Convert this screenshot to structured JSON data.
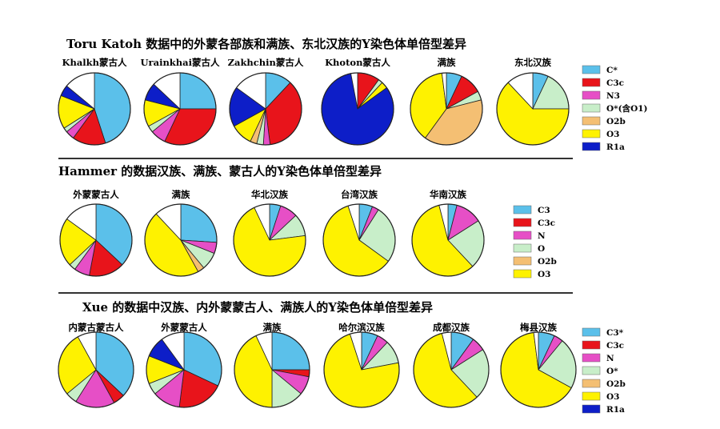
{
  "colors": {
    "C": "#5bc0ea",
    "C3c": "#e8141b",
    "N": "#e64fc6",
    "O": "#c8eec9",
    "O2b": "#f4bf73",
    "O3": "#fef200",
    "R1a": "#0d1ec8",
    "other": "#ffffff"
  },
  "chart_data": [
    {
      "type": "pie",
      "title": "Toru Katoh 数据中的外蒙各部族和满族、东北汉族的Y染色体单倍型差异",
      "legend": [
        {
          "key": "C",
          "label": "C*"
        },
        {
          "key": "C3c",
          "label": "C3c"
        },
        {
          "key": "N",
          "label": "N3"
        },
        {
          "key": "O",
          "label": "O*(含O1)"
        },
        {
          "key": "O2b",
          "label": "O2b"
        },
        {
          "key": "O3",
          "label": "O3"
        },
        {
          "key": "R1a",
          "label": "R1a"
        }
      ],
      "series": [
        {
          "name": "Khalkh蒙古人",
          "slices": [
            {
              "key": "C",
              "value": 45
            },
            {
              "key": "C3c",
              "value": 15
            },
            {
              "key": "N",
              "value": 4
            },
            {
              "key": "O",
              "value": 2
            },
            {
              "key": "O3",
              "value": 15
            },
            {
              "key": "R1a",
              "value": 5
            },
            {
              "key": "other",
              "value": 14
            }
          ]
        },
        {
          "name": "Urainkhai蒙古人",
          "slices": [
            {
              "key": "C",
              "value": 25
            },
            {
              "key": "C3c",
              "value": 32
            },
            {
              "key": "N",
              "value": 7
            },
            {
              "key": "O",
              "value": 3
            },
            {
              "key": "O3",
              "value": 12
            },
            {
              "key": "R1a",
              "value": 8
            },
            {
              "key": "other",
              "value": 13
            }
          ]
        },
        {
          "name": "Zakhchin蒙古人",
          "slices": [
            {
              "key": "C",
              "value": 12
            },
            {
              "key": "C3c",
              "value": 36
            },
            {
              "key": "N",
              "value": 3
            },
            {
              "key": "O",
              "value": 3
            },
            {
              "key": "O2b",
              "value": 3
            },
            {
              "key": "O3",
              "value": 10
            },
            {
              "key": "R1a",
              "value": 18
            },
            {
              "key": "other",
              "value": 15
            }
          ]
        },
        {
          "name": "Khoton蒙古人",
          "slices": [
            {
              "key": "C3c",
              "value": 10
            },
            {
              "key": "O",
              "value": 2
            },
            {
              "key": "O3",
              "value": 3
            },
            {
              "key": "R1a",
              "value": 82
            },
            {
              "key": "other",
              "value": 3
            }
          ]
        },
        {
          "name": "满族",
          "slices": [
            {
              "key": "C",
              "value": 7
            },
            {
              "key": "C3c",
              "value": 10
            },
            {
              "key": "O",
              "value": 4
            },
            {
              "key": "O2b",
              "value": 39
            },
            {
              "key": "O3",
              "value": 38
            },
            {
              "key": "other",
              "value": 2
            }
          ]
        },
        {
          "name": "东北汉族",
          "slices": [
            {
              "key": "C",
              "value": 7
            },
            {
              "key": "O",
              "value": 18
            },
            {
              "key": "O3",
              "value": 63
            },
            {
              "key": "other",
              "value": 12
            }
          ]
        }
      ]
    },
    {
      "type": "pie",
      "title": "Hammer 的数据汉族、满族、蒙古人的Y染色体单倍型差异",
      "legend": [
        {
          "key": "C",
          "label": "C3"
        },
        {
          "key": "C3c",
          "label": "C3c"
        },
        {
          "key": "N",
          "label": "N"
        },
        {
          "key": "O",
          "label": "O"
        },
        {
          "key": "O2b",
          "label": "O2b"
        },
        {
          "key": "O3",
          "label": "O3"
        }
      ],
      "series": [
        {
          "name": "外蒙蒙古人",
          "slices": [
            {
              "key": "C",
              "value": 37
            },
            {
              "key": "C3c",
              "value": 16
            },
            {
              "key": "N",
              "value": 7
            },
            {
              "key": "O",
              "value": 3
            },
            {
              "key": "O3",
              "value": 22
            },
            {
              "key": "other",
              "value": 15
            }
          ]
        },
        {
          "name": "满族",
          "slices": [
            {
              "key": "C",
              "value": 26
            },
            {
              "key": "N",
              "value": 5
            },
            {
              "key": "O",
              "value": 8
            },
            {
              "key": "O2b",
              "value": 3
            },
            {
              "key": "O3",
              "value": 46
            },
            {
              "key": "other",
              "value": 12
            }
          ]
        },
        {
          "name": "华北汉族",
          "slices": [
            {
              "key": "C",
              "value": 5
            },
            {
              "key": "N",
              "value": 8
            },
            {
              "key": "O",
              "value": 10
            },
            {
              "key": "O3",
              "value": 70
            },
            {
              "key": "other",
              "value": 7
            }
          ]
        },
        {
          "name": "台湾汉族",
          "slices": [
            {
              "key": "C",
              "value": 6
            },
            {
              "key": "N",
              "value": 3
            },
            {
              "key": "O",
              "value": 26
            },
            {
              "key": "O3",
              "value": 60
            },
            {
              "key": "other",
              "value": 5
            }
          ]
        },
        {
          "name": "华南汉族",
          "slices": [
            {
              "key": "C",
              "value": 4
            },
            {
              "key": "N",
              "value": 12
            },
            {
              "key": "O",
              "value": 22
            },
            {
              "key": "O3",
              "value": 58
            },
            {
              "key": "other",
              "value": 4
            }
          ]
        }
      ]
    },
    {
      "type": "pie",
      "title": "Xue 的数据中汉族、内外蒙蒙古人、满族人的Y染色体单倍型差异",
      "legend": [
        {
          "key": "C",
          "label": "C3*"
        },
        {
          "key": "C3c",
          "label": "C3c"
        },
        {
          "key": "N",
          "label": "N"
        },
        {
          "key": "O",
          "label": "O*"
        },
        {
          "key": "O2b",
          "label": "O2b"
        },
        {
          "key": "O3",
          "label": "O3"
        },
        {
          "key": "R1a",
          "label": "R1a"
        }
      ],
      "series": [
        {
          "name": "内蒙古蒙古人",
          "slices": [
            {
              "key": "C",
              "value": 37
            },
            {
              "key": "C3c",
              "value": 5
            },
            {
              "key": "N",
              "value": 17
            },
            {
              "key": "O",
              "value": 5
            },
            {
              "key": "O3",
              "value": 28
            },
            {
              "key": "other",
              "value": 8
            }
          ]
        },
        {
          "name": "外蒙蒙古人",
          "slices": [
            {
              "key": "C",
              "value": 32
            },
            {
              "key": "C3c",
              "value": 20
            },
            {
              "key": "N",
              "value": 12
            },
            {
              "key": "O",
              "value": 5
            },
            {
              "key": "O3",
              "value": 12
            },
            {
              "key": "R1a",
              "value": 9
            },
            {
              "key": "other",
              "value": 10
            }
          ]
        },
        {
          "name": "满族",
          "slices": [
            {
              "key": "C",
              "value": 25
            },
            {
              "key": "C3c",
              "value": 3
            },
            {
              "key": "N",
              "value": 8
            },
            {
              "key": "O",
              "value": 14
            },
            {
              "key": "O3",
              "value": 43
            },
            {
              "key": "other",
              "value": 7
            }
          ]
        },
        {
          "name": "哈尔滨汉族",
          "slices": [
            {
              "key": "C",
              "value": 7
            },
            {
              "key": "N",
              "value": 5
            },
            {
              "key": "O",
              "value": 10
            },
            {
              "key": "O3",
              "value": 73
            },
            {
              "key": "other",
              "value": 5
            }
          ]
        },
        {
          "name": "成都汉族",
          "slices": [
            {
              "key": "C",
              "value": 10
            },
            {
              "key": "N",
              "value": 6
            },
            {
              "key": "O",
              "value": 22
            },
            {
              "key": "O3",
              "value": 58
            },
            {
              "key": "other",
              "value": 4
            }
          ]
        },
        {
          "name": "梅县汉族",
          "slices": [
            {
              "key": "C",
              "value": 7
            },
            {
              "key": "N",
              "value": 4
            },
            {
              "key": "O",
              "value": 22
            },
            {
              "key": "O3",
              "value": 65
            },
            {
              "key": "other",
              "value": 2
            }
          ]
        }
      ]
    }
  ]
}
